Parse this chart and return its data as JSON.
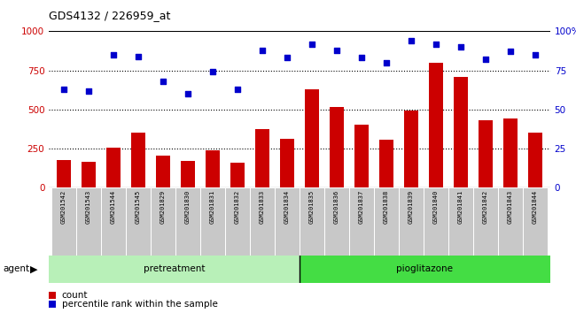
{
  "title": "GDS4132 / 226959_at",
  "samples": [
    "GSM201542",
    "GSM201543",
    "GSM201544",
    "GSM201545",
    "GSM201829",
    "GSM201830",
    "GSM201831",
    "GSM201832",
    "GSM201833",
    "GSM201834",
    "GSM201835",
    "GSM201836",
    "GSM201837",
    "GSM201838",
    "GSM201839",
    "GSM201840",
    "GSM201841",
    "GSM201842",
    "GSM201843",
    "GSM201844"
  ],
  "counts": [
    175,
    165,
    255,
    350,
    205,
    170,
    240,
    160,
    375,
    315,
    630,
    515,
    405,
    310,
    495,
    800,
    710,
    430,
    445,
    355
  ],
  "percentile": [
    63,
    62,
    85,
    84,
    68,
    60,
    74,
    63,
    88,
    83,
    92,
    88,
    83,
    80,
    94,
    92,
    90,
    82,
    87,
    85
  ],
  "pretreatment_count": 10,
  "bar_color": "#cc0000",
  "dot_color": "#0000cc",
  "bg_xticklabels": "#c8c8c8",
  "ylim_left": [
    0,
    1000
  ],
  "ylim_right": [
    0,
    100
  ],
  "yticks_left": [
    0,
    250,
    500,
    750,
    1000
  ],
  "yticks_right": [
    0,
    25,
    50,
    75,
    100
  ],
  "color_left": "#cc0000",
  "color_right": "#0000cc",
  "pretreatment_label": "pretreatment",
  "pioglitazone_label": "pioglitazone",
  "agent_label": "agent",
  "legend_count_label": "count",
  "legend_pct_label": "percentile rank within the sample",
  "pretreatment_color": "#b8f0b8",
  "pioglitazone_color": "#44dd44",
  "bar_width": 0.55
}
